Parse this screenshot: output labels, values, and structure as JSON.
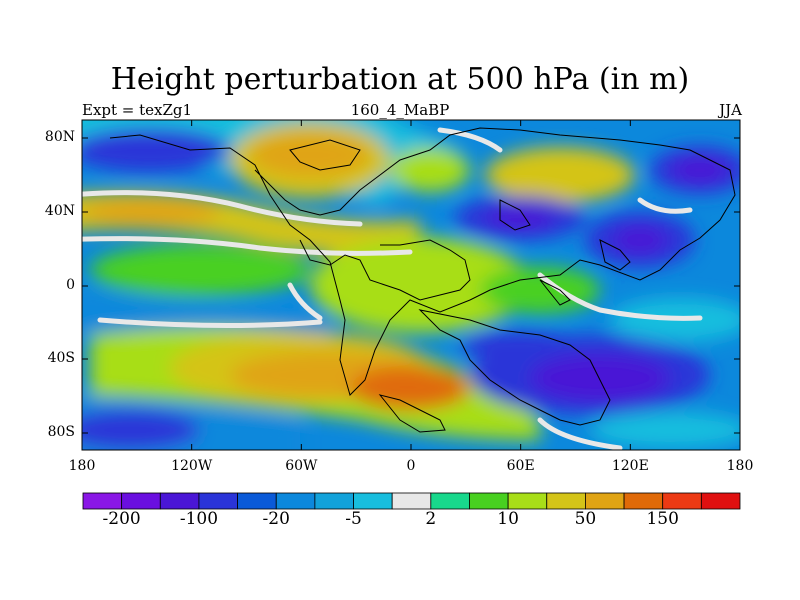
{
  "title": "Height perturbation at 500 hPa (in m)",
  "subtitle_left": "Expt = texZg1",
  "subtitle_center": "160_4_MaBP",
  "subtitle_right": "JJA",
  "lat_ticks": [
    "80N",
    "40N",
    "0",
    "40S",
    "80S"
  ],
  "lon_ticks": [
    "180",
    "120W",
    "60W",
    "0",
    "60E",
    "120E",
    "180"
  ],
  "colorbar": {
    "labels": [
      "-200",
      "-100",
      "-20",
      "-5",
      "2",
      "10",
      "50",
      "150"
    ],
    "colors": [
      "#8a17e6",
      "#6a0fe0",
      "#4a16d6",
      "#2a34d8",
      "#0a5ad8",
      "#0c88dc",
      "#12a2da",
      "#18bede",
      "#e8e8e8",
      "#18d88c",
      "#48d020",
      "#a8de18",
      "#d4c418",
      "#e0a414",
      "#e06a08",
      "#ec3a14",
      "#e01010"
    ]
  },
  "chart_data": {
    "type": "heatmap",
    "title": "Height perturbation at 500 hPa (in m)",
    "x_ticks": [
      "180",
      "120W",
      "60W",
      "0",
      "60E",
      "120E",
      "180"
    ],
    "y_ticks": [
      "80N",
      "40N",
      "0",
      "40S",
      "80S"
    ],
    "xlim": [
      -180,
      180
    ],
    "ylim": [
      -90,
      90
    ],
    "levels": [
      -200,
      -100,
      -20,
      -5,
      2,
      10,
      50,
      150
    ]
  }
}
